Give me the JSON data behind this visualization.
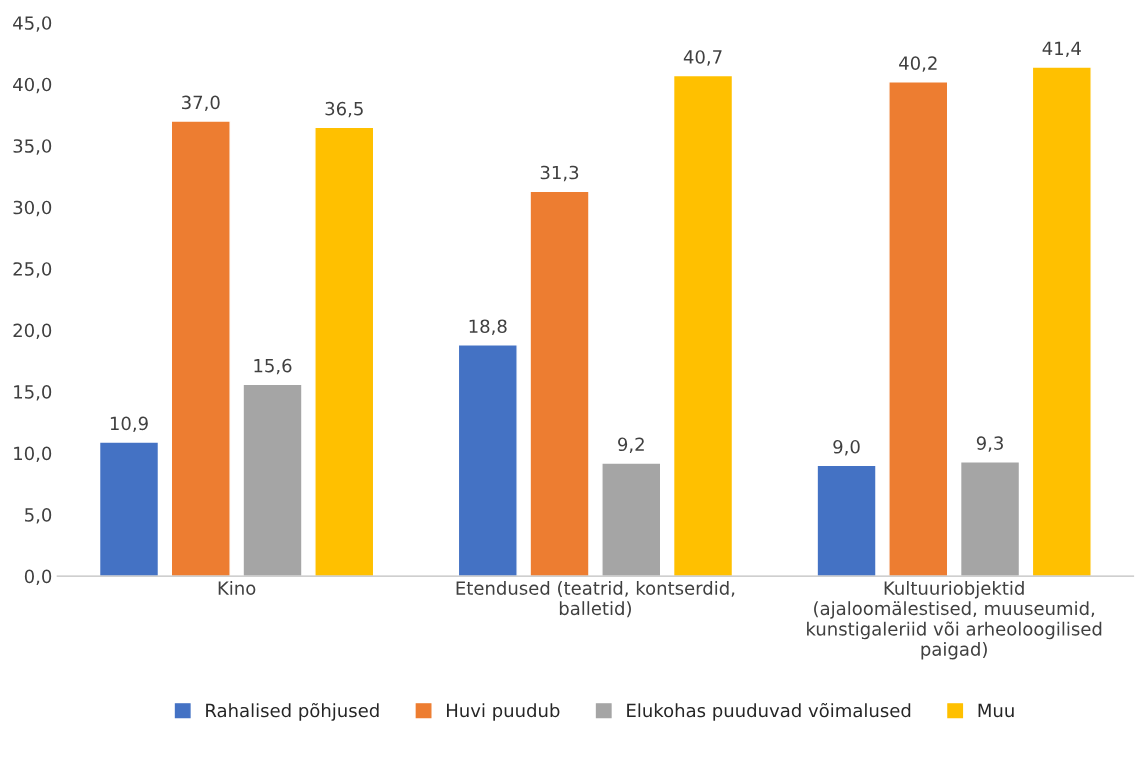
{
  "chart_data": {
    "type": "bar",
    "categories": [
      "Kino",
      "Etendused (teatrid, kontserdid,\nballetid)",
      "Kultuuriobjektid\n(ajaloomälestised, muuseumid,\nkunstigaleriid või arheoloogilised\npaigad)"
    ],
    "series": [
      {
        "name": "Rahalised põhjused",
        "color": "#4472c4",
        "values": [
          10.9,
          18.8,
          9.0
        ],
        "value_labels": [
          "10,9",
          "18,8",
          "9,0"
        ]
      },
      {
        "name": "Huvi puudub",
        "color": "#ed7d31",
        "values": [
          37.0,
          31.3,
          40.2
        ],
        "value_labels": [
          "37,0",
          "31,3",
          "40,2"
        ]
      },
      {
        "name": "Elukohas puuduvad võimalused",
        "color": "#a5a5a5",
        "values": [
          15.6,
          9.2,
          9.3
        ],
        "value_labels": [
          "15,6",
          "9,2",
          "9,3"
        ]
      },
      {
        "name": "Muu",
        "color": "#ffc000",
        "values": [
          36.5,
          40.7,
          41.4
        ],
        "value_labels": [
          "36,5",
          "40,7",
          "41,4"
        ]
      }
    ],
    "ylim": [
      0,
      45
    ],
    "yticks": [
      {
        "value": 0,
        "label": "0,0"
      },
      {
        "value": 5,
        "label": "5,0"
      },
      {
        "value": 10,
        "label": "10,0"
      },
      {
        "value": 15,
        "label": "15,0"
      },
      {
        "value": 20,
        "label": "20,0"
      },
      {
        "value": 25,
        "label": "25,0"
      },
      {
        "value": 30,
        "label": "30,0"
      },
      {
        "value": 35,
        "label": "35,0"
      },
      {
        "value": 40,
        "label": "40,0"
      },
      {
        "value": 45,
        "label": "45,0"
      }
    ],
    "grid": false,
    "legend": "bottom"
  }
}
